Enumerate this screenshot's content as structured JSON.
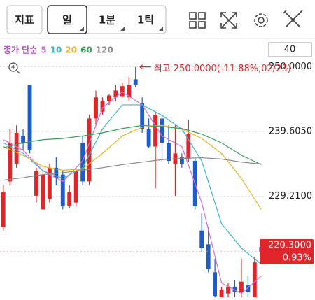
{
  "toolbar": {
    "indicator": "지표",
    "period": "일",
    "minute": "1분",
    "tick": "1틱"
  },
  "chart_data": {
    "type": "candlestick",
    "legend_title": "종가 단순",
    "period_count": "40",
    "high_label": "최고 250.0000(-11.88%,02/23)",
    "high_index": 20,
    "high_value": 250.0,
    "up_color": "#e0262b",
    "down_color": "#1f5cc8",
    "open": [
      224.3,
      231.6,
      234.4,
      238.9,
      247.1,
      229.3,
      227.1,
      228.8,
      233.8,
      232.7,
      227.6,
      228.2,
      237.8,
      231.6,
      241.7,
      242.8,
      244.5,
      245.1,
      245.3,
      245.1,
      248.0,
      244.2,
      240.0,
      237.2,
      241.7,
      237.8,
      234.4,
      235.5,
      235.2,
      234.9,
      223.7,
      221.5,
      217.0,
      213.0,
      213.6,
      214.7,
      213.8,
      214.9,
      213.0,
      221.1
    ],
    "high": [
      231.0,
      240.0,
      240.6,
      240.0,
      247.1,
      233.8,
      233.3,
      234.4,
      235.5,
      233.3,
      231.0,
      233.8,
      238.9,
      242.3,
      246.2,
      245.1,
      245.6,
      247.1,
      247.5,
      248.4,
      250.0,
      245.1,
      241.7,
      242.8,
      242.3,
      240.6,
      240.6,
      236.1,
      241.5,
      235.5,
      226.5,
      224.3,
      219.2,
      214.7,
      215.3,
      215.8,
      219.2,
      216.4,
      219.4,
      221.7
    ],
    "low": [
      223.7,
      231.0,
      233.8,
      236.6,
      236.1,
      228.2,
      227.1,
      228.2,
      231.0,
      227.1,
      227.3,
      227.6,
      231.0,
      231.0,
      240.6,
      242.3,
      243.9,
      244.5,
      245.1,
      244.5,
      246.7,
      239.4,
      237.0,
      230.5,
      234.9,
      234.4,
      229.3,
      233.8,
      234.7,
      227.1,
      220.3,
      217.0,
      212.5,
      212.8,
      212.9,
      212.9,
      212.9,
      212.9,
      212.8,
      219.0
    ],
    "close": [
      229.9,
      237.8,
      239.4,
      237.8,
      236.6,
      233.3,
      232.7,
      233.8,
      232.1,
      227.6,
      229.9,
      233.3,
      231.6,
      241.7,
      245.1,
      244.5,
      245.4,
      246.2,
      246.9,
      247.1,
      247.1,
      240.0,
      237.2,
      242.3,
      237.8,
      234.9,
      236.1,
      234.4,
      239.2,
      227.6,
      220.9,
      217.5,
      213.2,
      214.2,
      214.7,
      213.8,
      215.5,
      213.8,
      218.6,
      220.3
    ],
    "series": [
      {
        "name": "5",
        "color": "#d46fd8",
        "x": [
          0,
          3,
          6,
          9,
          12,
          15,
          18,
          21,
          24,
          27,
          30,
          33,
          36,
          39
        ],
        "values": [
          238.3,
          236.6,
          233.3,
          231.6,
          234.9,
          243.4,
          246.0,
          243.9,
          238.9,
          237.2,
          228.2,
          215.3,
          213.6,
          216.4
        ]
      },
      {
        "name": "10",
        "color": "#3cb6cf",
        "x": [
          0,
          3,
          6,
          9,
          12,
          15,
          18,
          21,
          24,
          27,
          30,
          33,
          36,
          39
        ],
        "values": [
          237.8,
          236.1,
          233.3,
          232.1,
          233.8,
          240.0,
          243.9,
          243.9,
          242.2,
          240.0,
          234.9,
          224.8,
          220.9,
          218.3
        ]
      },
      {
        "name": "20",
        "color": "#e7b526",
        "x": [
          0,
          3,
          6,
          9,
          12,
          15,
          18,
          21,
          24,
          27,
          30,
          33,
          36,
          39
        ],
        "values": [
          237.2,
          235.8,
          234.0,
          233.4,
          233.6,
          236.1,
          238.9,
          240.3,
          240.6,
          240.0,
          238.5,
          236.1,
          232.1,
          227.1
        ]
      },
      {
        "name": "60",
        "color": "#3a9f58",
        "x": [
          0,
          3,
          6,
          9,
          12,
          15,
          18,
          21,
          24,
          27,
          30,
          33,
          36,
          39
        ],
        "values": [
          237.0,
          237.8,
          238.3,
          238.5,
          238.9,
          239.4,
          240.1,
          240.6,
          240.4,
          240.1,
          239.2,
          237.8,
          235.8,
          234.3
        ]
      },
      {
        "name": "120",
        "color": "#8a8a8a",
        "x": [
          0,
          3,
          6,
          9,
          12,
          15,
          18,
          21,
          24,
          27,
          30,
          33,
          36,
          39
        ],
        "values": [
          231.8,
          232.2,
          232.7,
          233.0,
          233.4,
          233.8,
          234.3,
          234.7,
          235.1,
          235.3,
          235.4,
          235.2,
          234.7,
          234.4
        ]
      }
    ],
    "xlim": [
      -0.5,
      39.5
    ],
    "ylim": [
      213.0,
      254.0
    ],
    "yticks": [
      {
        "value": 250.0,
        "label": "250.0000"
      },
      {
        "value": 239.605,
        "label": "239.6050"
      },
      {
        "value": 229.21,
        "label": "229.2100"
      }
    ],
    "grid": true,
    "last_price": {
      "value": 220.3,
      "label": "220.3000"
    },
    "change_label": "0.93%"
  }
}
